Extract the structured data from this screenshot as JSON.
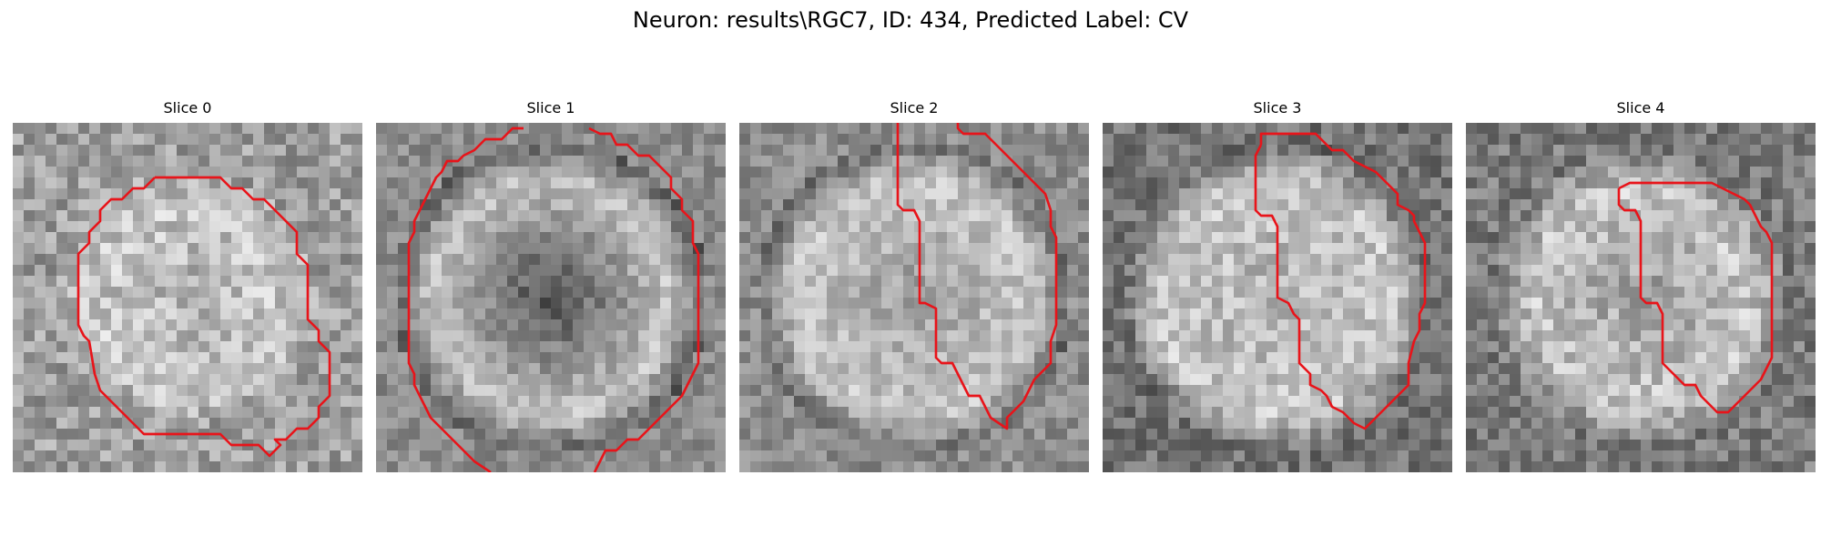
{
  "figure": {
    "title": "Neuron: results\\RGC7, ID: 434, Predicted Label: CV"
  },
  "colors": {
    "contour": "#e8141a",
    "background": "#ffffff"
  },
  "panels": [
    {
      "label": "Slice 0"
    },
    {
      "label": "Slice 1"
    },
    {
      "label": "Slice 2"
    },
    {
      "label": "Slice 3"
    },
    {
      "label": "Slice 4"
    }
  ]
}
